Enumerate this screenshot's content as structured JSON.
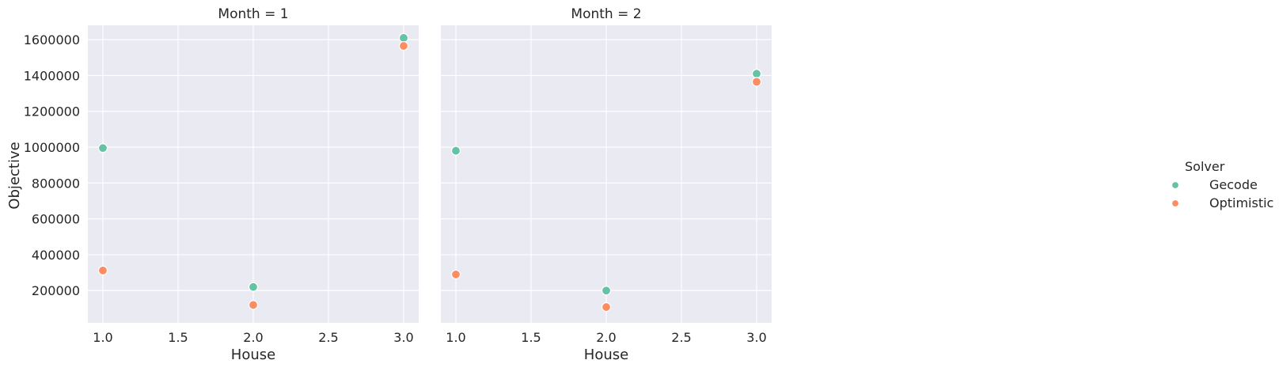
{
  "chart_data": {
    "type": "scatter",
    "xlabel": "House",
    "ylabel": "Objective",
    "xlim": [
      0.9,
      3.1
    ],
    "ylim": [
      20000,
      1680000
    ],
    "x_ticks": [
      1.0,
      1.5,
      2.0,
      2.5,
      3.0
    ],
    "x_tick_labels": [
      "1.0",
      "1.5",
      "2.0",
      "2.5",
      "3.0"
    ],
    "y_ticks": [
      200000,
      400000,
      600000,
      800000,
      1000000,
      1200000,
      1400000,
      1600000
    ],
    "y_tick_labels": [
      "200000",
      "400000",
      "600000",
      "800000",
      "1000000",
      "1200000",
      "1400000",
      "1600000"
    ],
    "grid": true,
    "legend": {
      "title": "Solver",
      "placement": "right",
      "entries": [
        {
          "name": "Gecode",
          "color": "#66c2a5"
        },
        {
          "name": "Optimistic",
          "color": "#fc8d62"
        }
      ]
    },
    "facets": [
      {
        "title": "Month = 1",
        "series": [
          {
            "name": "Gecode",
            "x": [
              1.0,
              2.0,
              3.0
            ],
            "y": [
              995000,
              220000,
              1610000
            ]
          },
          {
            "name": "Optimistic",
            "x": [
              1.0,
              2.0,
              3.0
            ],
            "y": [
              312000,
              120000,
              1565000
            ]
          }
        ]
      },
      {
        "title": "Month = 2",
        "series": [
          {
            "name": "Gecode",
            "x": [
              1.0,
              2.0,
              3.0
            ],
            "y": [
              980000,
              200000,
              1410000
            ]
          },
          {
            "name": "Optimistic",
            "x": [
              1.0,
              2.0,
              3.0
            ],
            "y": [
              290000,
              108000,
              1365000
            ]
          }
        ]
      }
    ]
  }
}
